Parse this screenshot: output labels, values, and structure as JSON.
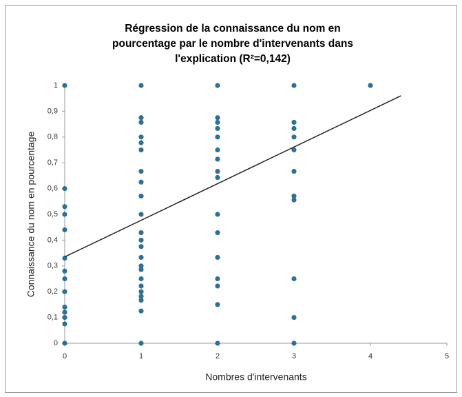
{
  "chart_data": {
    "type": "scatter",
    "title": [
      "Régression de la connaissance du nom en",
      "pourcentage par le nombre d'intervenants dans",
      "l'explication (R²=0,142)"
    ],
    "x_label": "Nombres d'intervenants",
    "y_label": "Connaissance du nom en pourcentage",
    "color": "#2f7193",
    "x": [
      0,
      0,
      0,
      0,
      0,
      0,
      0,
      0,
      0,
      0,
      0,
      0,
      0,
      0,
      1,
      1,
      1,
      1,
      1,
      1,
      1,
      1,
      1,
      1,
      1,
      1,
      1,
      1,
      1,
      1,
      1,
      1,
      1,
      1,
      1,
      1,
      1,
      2,
      2,
      2,
      2,
      2,
      2,
      2,
      2,
      2,
      2,
      2,
      2,
      2,
      2,
      2,
      2,
      3,
      3,
      3,
      3,
      3,
      3,
      3,
      3,
      3,
      3,
      3,
      4
    ],
    "values": [
      1,
      0.6,
      0.53,
      0.5,
      0.44,
      0.33,
      0.28,
      0.25,
      0.2,
      0.14,
      0.12,
      0.1,
      0.075,
      0,
      1,
      0.875,
      0.857,
      0.8,
      0.778,
      0.75,
      0.667,
      0.625,
      0.571,
      0.5,
      0.429,
      0.4,
      0.375,
      0.333,
      0.3,
      0.286,
      0.25,
      0.222,
      0.2,
      0.182,
      0.167,
      0.125,
      0,
      1,
      0.875,
      0.857,
      0.833,
      0.8,
      0.75,
      0.714,
      0.667,
      0.643,
      0.5,
      0.429,
      0.333,
      0.25,
      0.222,
      0.15,
      0,
      1,
      0.857,
      0.833,
      0.8,
      0.75,
      0.667,
      0.571,
      0.556,
      0.25,
      0.1,
      0,
      1
    ],
    "trendline": {
      "color": "#222222",
      "x": [
        0,
        4.4
      ],
      "values": [
        0.335,
        0.96
      ]
    },
    "xlim": [
      0,
      5
    ],
    "xticks": [
      0,
      1,
      2,
      3,
      4,
      5
    ],
    "ylim": [
      0,
      1
    ],
    "yticks": [
      0,
      {
        "value": 0.1,
        "label": "0,1"
      },
      {
        "value": 0.2,
        "label": "0,2"
      },
      {
        "value": 0.3,
        "label": "0,3"
      },
      {
        "value": 0.4,
        "label": "0,4"
      },
      {
        "value": 0.5,
        "label": "0,5"
      },
      {
        "value": 0.6,
        "label": "0,6"
      },
      {
        "value": 0.7,
        "label": "0,7"
      },
      {
        "value": 0.8,
        "label": "0,8"
      },
      {
        "value": 0.9,
        "label": "0,9"
      },
      1
    ],
    "grid": false
  }
}
